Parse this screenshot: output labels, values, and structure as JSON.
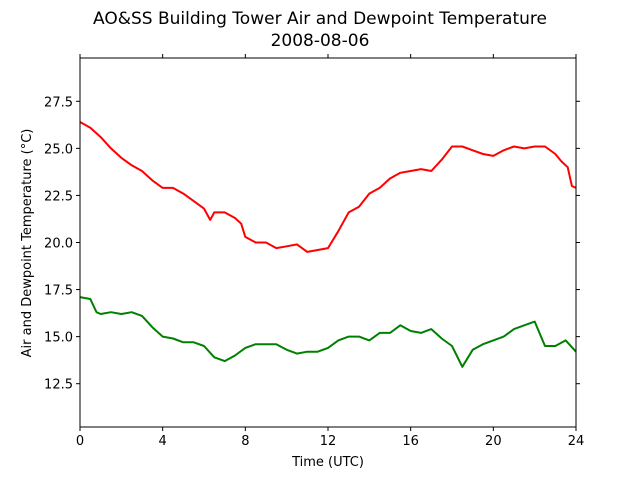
{
  "chart_data": {
    "type": "line",
    "title": "AO&SS Building Tower Air and Dewpoint Temperature",
    "subtitle": "2008-08-06",
    "xlabel": "Time (UTC)",
    "ylabel": "Air and Dewpoint Temperature (°C)",
    "xlim": [
      0,
      24
    ],
    "ylim": [
      10.2,
      29.8
    ],
    "xticks": [
      0,
      4,
      8,
      12,
      16,
      20,
      24
    ],
    "yticks": [
      12.5,
      15.0,
      17.5,
      20.0,
      22.5,
      25.0,
      27.5
    ],
    "ytick_labels": [
      "12.5",
      "15.0",
      "17.5",
      "20.0",
      "22.5",
      "25.0",
      "27.5"
    ],
    "grid": false,
    "series": [
      {
        "color": "#ff0000",
        "x": [
          0,
          0.5,
          1,
          1.5,
          2,
          2.5,
          3,
          3.5,
          4,
          4.5,
          5,
          5.5,
          6,
          6.3,
          6.5,
          7,
          7.5,
          7.8,
          8,
          8.5,
          9,
          9.5,
          10,
          10.5,
          11,
          11.5,
          12,
          12.5,
          13,
          13.5,
          14,
          14.5,
          15,
          15.5,
          16,
          16.5,
          17,
          17.5,
          18,
          18.5,
          19,
          19.5,
          20,
          20.5,
          21,
          21.5,
          22,
          22.5,
          23,
          23.3,
          23.6,
          23.8,
          24
        ],
        "values": [
          26.4,
          26.1,
          25.6,
          25.0,
          24.5,
          24.1,
          23.8,
          23.3,
          22.9,
          22.9,
          22.6,
          22.2,
          21.8,
          21.2,
          21.6,
          21.6,
          21.3,
          21.0,
          20.3,
          20.0,
          20.0,
          19.7,
          19.8,
          19.9,
          19.5,
          19.6,
          19.7,
          20.6,
          21.6,
          21.9,
          22.6,
          22.9,
          23.4,
          23.7,
          23.8,
          23.9,
          23.8,
          24.4,
          25.1,
          25.1,
          24.9,
          24.7,
          24.6,
          24.9,
          25.1,
          25.0,
          25.1,
          25.1,
          24.7,
          24.3,
          24.0,
          23.0,
          22.9
        ]
      },
      {
        "color": "#008000",
        "x": [
          0,
          0.5,
          0.8,
          1,
          1.5,
          2,
          2.5,
          3,
          3.5,
          4,
          4.5,
          5,
          5.5,
          6,
          6.5,
          7,
          7.5,
          8,
          8.5,
          9,
          9.5,
          10,
          10.5,
          11,
          11.5,
          12,
          12.5,
          13,
          13.5,
          14,
          14.5,
          15,
          15.5,
          16,
          16.5,
          17,
          17.5,
          18,
          18.5,
          19,
          19.5,
          20,
          20.5,
          21,
          21.5,
          22,
          22.5,
          23,
          23.5,
          24
        ],
        "values": [
          17.1,
          17.0,
          16.3,
          16.2,
          16.3,
          16.2,
          16.3,
          16.1,
          15.5,
          15.0,
          14.9,
          14.7,
          14.7,
          14.5,
          13.9,
          13.7,
          14.0,
          14.4,
          14.6,
          14.6,
          14.6,
          14.3,
          14.1,
          14.2,
          14.2,
          14.4,
          14.8,
          15.0,
          15.0,
          14.8,
          15.2,
          15.2,
          15.6,
          15.3,
          15.2,
          15.4,
          14.9,
          14.5,
          13.4,
          14.3,
          14.6,
          14.8,
          15.0,
          15.4,
          15.6,
          15.8,
          14.5,
          14.5,
          14.8,
          14.2
        ]
      }
    ]
  }
}
